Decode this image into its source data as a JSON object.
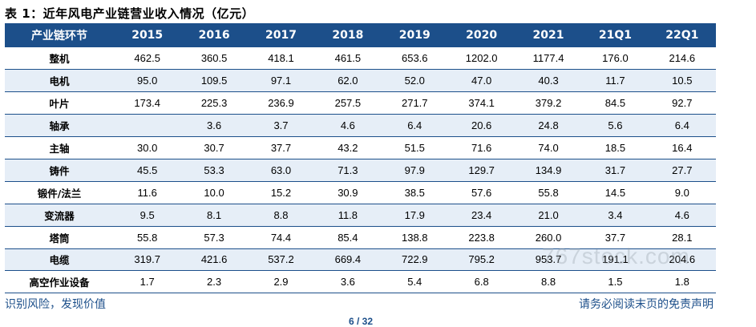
{
  "title": "表 1：近年风电产业链营业收入情况（亿元）",
  "table": {
    "headers": [
      "产业链环节",
      "2015",
      "2016",
      "2017",
      "2018",
      "2019",
      "2020",
      "2021",
      "21Q1",
      "22Q1"
    ],
    "rows": [
      {
        "label": "整机",
        "values": [
          "462.5",
          "360.5",
          "418.1",
          "461.5",
          "653.6",
          "1202.0",
          "1177.4",
          "176.0",
          "214.6"
        ]
      },
      {
        "label": "电机",
        "values": [
          "95.0",
          "109.5",
          "97.1",
          "62.0",
          "52.0",
          "47.0",
          "40.3",
          "11.7",
          "10.5"
        ]
      },
      {
        "label": "叶片",
        "values": [
          "173.4",
          "225.3",
          "236.9",
          "257.5",
          "271.7",
          "374.1",
          "379.2",
          "84.5",
          "92.7"
        ]
      },
      {
        "label": "轴承",
        "values": [
          "",
          "3.6",
          "3.7",
          "4.6",
          "6.4",
          "20.6",
          "24.8",
          "5.6",
          "6.4"
        ]
      },
      {
        "label": "主轴",
        "values": [
          "30.0",
          "30.7",
          "37.7",
          "43.2",
          "51.5",
          "71.6",
          "74.0",
          "18.5",
          "16.4"
        ]
      },
      {
        "label": "铸件",
        "values": [
          "45.5",
          "53.3",
          "63.0",
          "71.3",
          "97.9",
          "129.7",
          "134.9",
          "31.7",
          "27.7"
        ]
      },
      {
        "label": "锻件/法兰",
        "values": [
          "11.6",
          "10.0",
          "15.2",
          "30.9",
          "38.5",
          "57.6",
          "55.8",
          "14.5",
          "9.0"
        ]
      },
      {
        "label": "变流器",
        "values": [
          "9.5",
          "8.1",
          "8.8",
          "11.8",
          "17.9",
          "23.4",
          "21.0",
          "3.4",
          "4.6"
        ]
      },
      {
        "label": "塔筒",
        "values": [
          "55.8",
          "57.3",
          "74.4",
          "85.4",
          "138.8",
          "223.8",
          "260.0",
          "37.7",
          "28.1"
        ]
      },
      {
        "label": "电缆",
        "values": [
          "319.7",
          "421.6",
          "537.2",
          "669.4",
          "722.9",
          "795.2",
          "953.7",
          "191.1",
          "204.6"
        ]
      },
      {
        "label": "高空作业设备",
        "values": [
          "1.7",
          "2.3",
          "2.9",
          "3.6",
          "5.4",
          "6.8",
          "8.8",
          "1.5",
          "1.8"
        ]
      }
    ]
  },
  "watermark": "767stock.com",
  "footer": {
    "left": "识别风险，发现价值",
    "right": "请务必阅读末页的免责声明",
    "page": "6 / 32"
  },
  "colors": {
    "header_bg": "#1c4f8a",
    "row_shade": "#e6eef7",
    "footer_text": "#1c4f8a"
  }
}
